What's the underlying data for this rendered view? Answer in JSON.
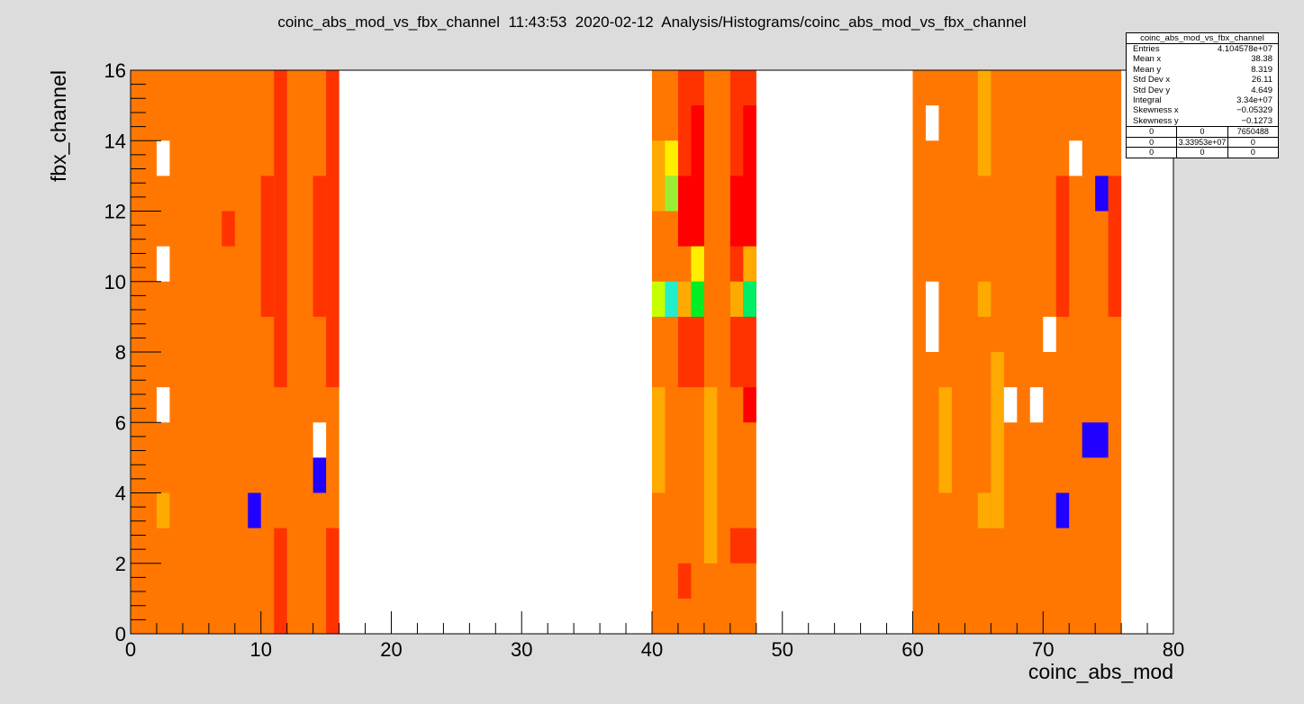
{
  "title": "coinc_abs_mod_vs_fbx_channel  11:43:53  2020-02-12  Analysis/Histograms/coinc_abs_mod_vs_fbx_channel",
  "stats": {
    "title": "coinc_abs_mod_vs_fbx_channel",
    "rows": [
      {
        "label": "Entries",
        "value": "4.104578e+07"
      },
      {
        "label": "Mean x",
        "value": "38.38"
      },
      {
        "label": "Mean y",
        "value": "8.319"
      },
      {
        "label": "Std Dev x",
        "value": "26.11"
      },
      {
        "label": "Std Dev y",
        "value": "4.649"
      },
      {
        "label": "Integral",
        "value": "3.34e+07"
      },
      {
        "label": "Skewness x",
        "value": "−0.05329"
      },
      {
        "label": "Skewness y",
        "value": "−0.1273"
      }
    ],
    "grid": [
      [
        "0",
        "0",
        "7650488"
      ],
      [
        "0",
        "3.33953e+07",
        "0"
      ],
      [
        "0",
        "0",
        "0"
      ]
    ]
  },
  "chart_data": {
    "type": "heatmap",
    "title": "coinc_abs_mod_vs_fbx_channel  11:43:53  2020-02-12  Analysis/Histograms/coinc_abs_mod_vs_fbx_channel",
    "xlabel": "coinc_abs_mod",
    "ylabel": "fbx_channel",
    "xlim": [
      0,
      80
    ],
    "ylim": [
      0,
      16
    ],
    "x_ticks": [
      0,
      10,
      20,
      30,
      40,
      50,
      60,
      70,
      80
    ],
    "y_ticks": [
      0,
      2,
      4,
      6,
      8,
      10,
      12,
      14,
      16
    ],
    "bin_width_x": 1,
    "bin_width_y": 1,
    "colors": {
      "base": "#ff7700",
      "high": "#ff3300",
      "max": "#ff0000",
      "mid": "#ffaa00",
      "yellow": "#ffee00",
      "yellowgreen": "#c8ff00",
      "lime": "#99ee33",
      "cyan": "#22eecc",
      "green": "#00ee22",
      "green2": "#00ee66",
      "low": "#2200ff",
      "empty": "#ffffff"
    },
    "filled_ranges": [
      {
        "x": [
          0,
          16
        ],
        "y": [
          0,
          16
        ]
      },
      {
        "x": [
          40,
          48
        ],
        "y": [
          0,
          16
        ]
      },
      {
        "x": [
          60,
          76
        ],
        "y": [
          0,
          16
        ]
      }
    ],
    "cells": [
      {
        "x": [
          11,
          12
        ],
        "y": [
          7,
          16
        ],
        "c": "high"
      },
      {
        "x": [
          11,
          12
        ],
        "y": [
          0,
          3
        ],
        "c": "high"
      },
      {
        "x": [
          10,
          11
        ],
        "y": [
          9,
          13
        ],
        "c": "high"
      },
      {
        "x": [
          15,
          16
        ],
        "y": [
          7,
          16
        ],
        "c": "high"
      },
      {
        "x": [
          15,
          16
        ],
        "y": [
          0,
          3
        ],
        "c": "high"
      },
      {
        "x": [
          14,
          15
        ],
        "y": [
          9,
          13
        ],
        "c": "high"
      },
      {
        "x": [
          7,
          8
        ],
        "y": [
          11,
          12
        ],
        "c": "high"
      },
      {
        "x": [
          2,
          3
        ],
        "y": [
          13,
          14
        ],
        "c": "empty"
      },
      {
        "x": [
          2,
          3
        ],
        "y": [
          10,
          11
        ],
        "c": "empty"
      },
      {
        "x": [
          2,
          3
        ],
        "y": [
          6,
          7
        ],
        "c": "empty"
      },
      {
        "x": [
          14,
          15
        ],
        "y": [
          5,
          6
        ],
        "c": "empty"
      },
      {
        "x": [
          14,
          15
        ],
        "y": [
          4,
          5
        ],
        "c": "low"
      },
      {
        "x": [
          9,
          10
        ],
        "y": [
          3,
          4
        ],
        "c": "low"
      },
      {
        "x": [
          2,
          3
        ],
        "y": [
          3,
          4
        ],
        "c": "mid"
      },
      {
        "x": [
          42,
          44
        ],
        "y": [
          7,
          16
        ],
        "c": "high"
      },
      {
        "x": [
          46,
          48
        ],
        "y": [
          7,
          16
        ],
        "c": "high"
      },
      {
        "x": [
          42,
          44
        ],
        "y": [
          11,
          13
        ],
        "c": "max"
      },
      {
        "x": [
          46,
          48
        ],
        "y": [
          11,
          13
        ],
        "c": "max"
      },
      {
        "x": [
          43,
          44
        ],
        "y": [
          13,
          15
        ],
        "c": "max"
      },
      {
        "x": [
          47,
          48
        ],
        "y": [
          13,
          15
        ],
        "c": "max"
      },
      {
        "x": [
          40,
          41
        ],
        "y": [
          12,
          14
        ],
        "c": "mid"
      },
      {
        "x": [
          41,
          42
        ],
        "y": [
          13,
          14
        ],
        "c": "yellow"
      },
      {
        "x": [
          41,
          42
        ],
        "y": [
          12,
          13
        ],
        "c": "lime"
      },
      {
        "x": [
          42,
          44
        ],
        "y": [
          9,
          11
        ],
        "c": "base"
      },
      {
        "x": [
          43,
          44
        ],
        "y": [
          10,
          11
        ],
        "c": "yellow"
      },
      {
        "x": [
          46,
          47
        ],
        "y": [
          10,
          11
        ],
        "c": "high"
      },
      {
        "x": [
          47,
          48
        ],
        "y": [
          10,
          11
        ],
        "c": "mid"
      },
      {
        "x": [
          46,
          47
        ],
        "y": [
          9,
          10
        ],
        "c": "mid"
      },
      {
        "x": [
          40,
          41
        ],
        "y": [
          9,
          10
        ],
        "c": "yellowgreen"
      },
      {
        "x": [
          41,
          42
        ],
        "y": [
          9,
          10
        ],
        "c": "cyan"
      },
      {
        "x": [
          42,
          43
        ],
        "y": [
          9,
          10
        ],
        "c": "mid"
      },
      {
        "x": [
          43,
          44
        ],
        "y": [
          9,
          10
        ],
        "c": "green"
      },
      {
        "x": [
          47,
          48
        ],
        "y": [
          9,
          10
        ],
        "c": "green2"
      },
      {
        "x": [
          40,
          41
        ],
        "y": [
          4,
          7
        ],
        "c": "mid"
      },
      {
        "x": [
          44,
          45
        ],
        "y": [
          2,
          7
        ],
        "c": "mid"
      },
      {
        "x": [
          47,
          48
        ],
        "y": [
          6,
          7
        ],
        "c": "max"
      },
      {
        "x": [
          46,
          48
        ],
        "y": [
          2,
          3
        ],
        "c": "high"
      },
      {
        "x": [
          42,
          43
        ],
        "y": [
          1,
          2
        ],
        "c": "high"
      },
      {
        "x": [
          61,
          62
        ],
        "y": [
          14,
          15
        ],
        "c": "empty"
      },
      {
        "x": [
          65,
          66
        ],
        "y": [
          13,
          16
        ],
        "c": "mid"
      },
      {
        "x": [
          71,
          72
        ],
        "y": [
          9,
          13
        ],
        "c": "high"
      },
      {
        "x": [
          75,
          76
        ],
        "y": [
          9,
          13
        ],
        "c": "high"
      },
      {
        "x": [
          72,
          73
        ],
        "y": [
          13,
          14
        ],
        "c": "empty"
      },
      {
        "x": [
          74,
          75
        ],
        "y": [
          12,
          13
        ],
        "c": "low"
      },
      {
        "x": [
          61,
          62
        ],
        "y": [
          8,
          10
        ],
        "c": "empty"
      },
      {
        "x": [
          65,
          66
        ],
        "y": [
          9,
          10
        ],
        "c": "mid"
      },
      {
        "x": [
          70,
          71
        ],
        "y": [
          8,
          9
        ],
        "c": "empty"
      },
      {
        "x": [
          66,
          67
        ],
        "y": [
          3,
          8
        ],
        "c": "mid"
      },
      {
        "x": [
          65,
          66
        ],
        "y": [
          3,
          4
        ],
        "c": "mid"
      },
      {
        "x": [
          62,
          63
        ],
        "y": [
          4,
          7
        ],
        "c": "mid"
      },
      {
        "x": [
          67,
          68
        ],
        "y": [
          6,
          7
        ],
        "c": "empty"
      },
      {
        "x": [
          69,
          70
        ],
        "y": [
          6,
          7
        ],
        "c": "empty"
      },
      {
        "x": [
          73,
          75
        ],
        "y": [
          5,
          6
        ],
        "c": "low"
      },
      {
        "x": [
          71,
          72
        ],
        "y": [
          3,
          4
        ],
        "c": "low"
      }
    ]
  }
}
